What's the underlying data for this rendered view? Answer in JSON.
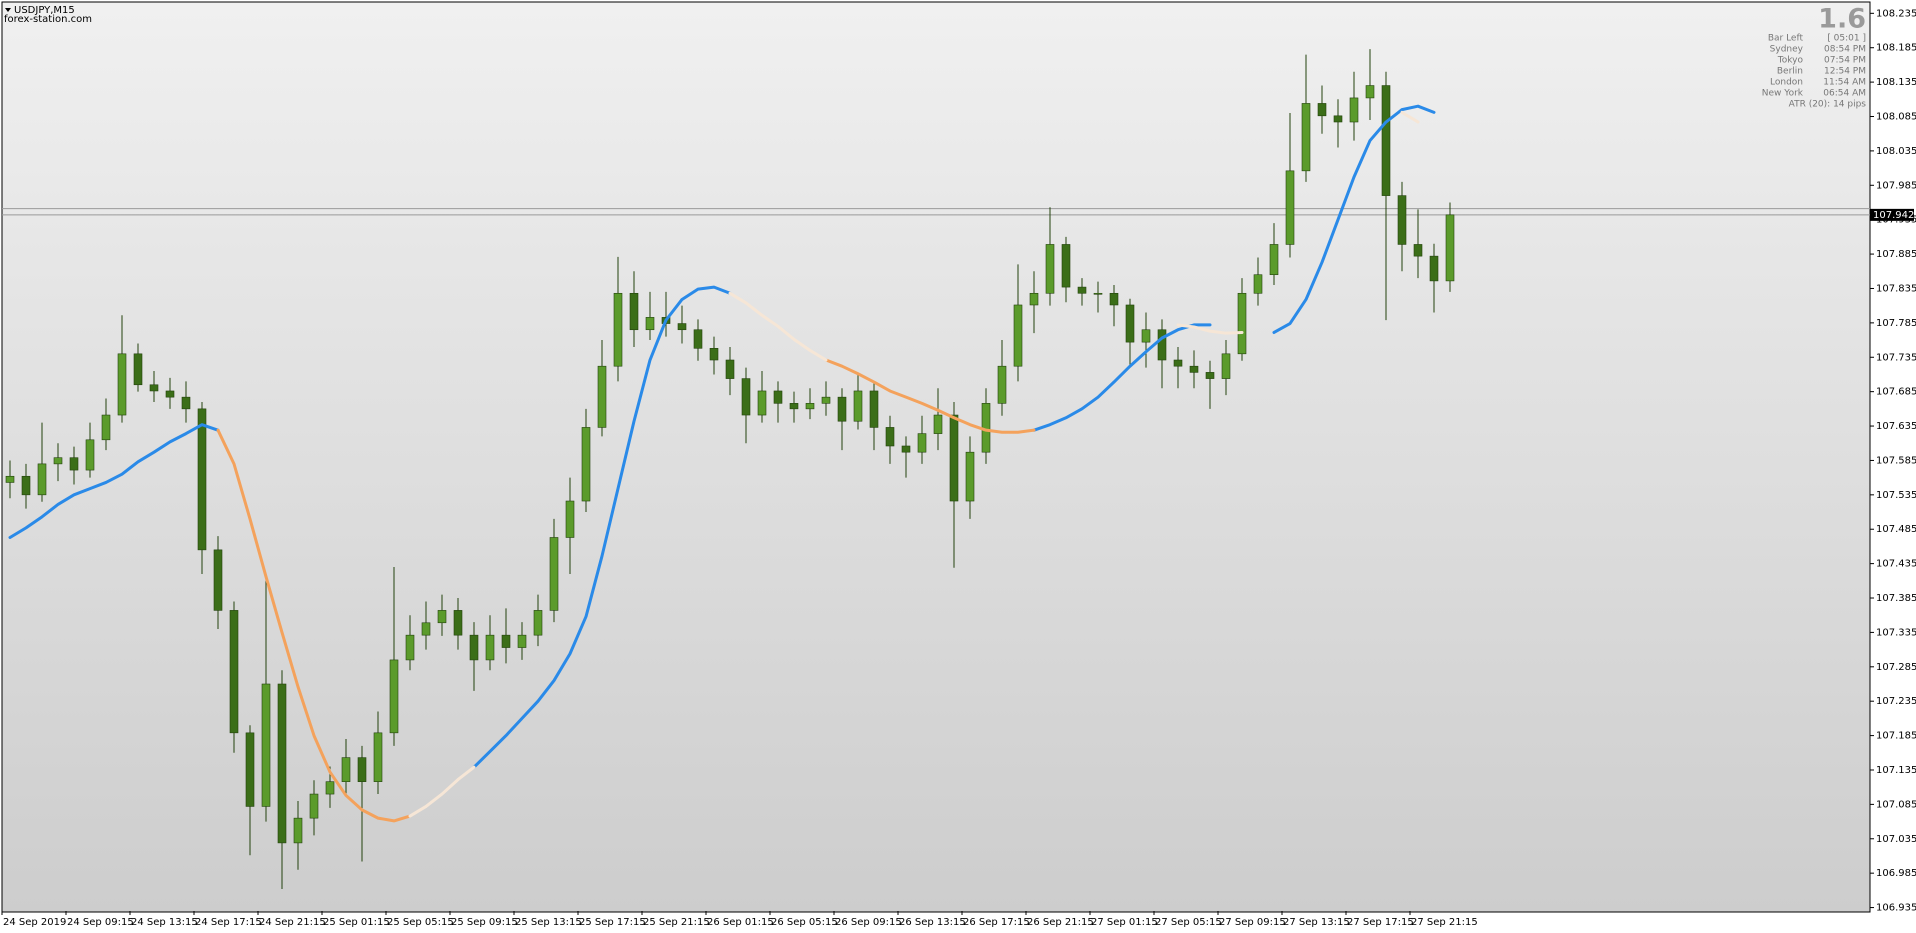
{
  "chart_data": {
    "type": "candlestick",
    "symbol": "USDJPY,M15",
    "watermark": "forex-station.com",
    "info": {
      "value": "1.6",
      "rows": [
        [
          "Bar Left",
          "[ 05:01 ]"
        ],
        [
          "Sydney",
          "08:54 PM"
        ],
        [
          "Tokyo",
          "07:54 PM"
        ],
        [
          "Berlin",
          "12:54 PM"
        ],
        [
          "London",
          "11:54 AM"
        ],
        [
          "New York",
          "06:54 AM"
        ]
      ],
      "footer": "ATR (20): 14 pips"
    },
    "categories": [
      "24 Sep 2019",
      null,
      null,
      null,
      "24 Sep 09:15",
      null,
      null,
      null,
      "24 Sep 13:15",
      null,
      null,
      null,
      "24 Sep 17:15",
      null,
      null,
      null,
      "24 Sep 21:15",
      null,
      null,
      null,
      "25 Sep 01:15",
      null,
      null,
      null,
      "25 Sep 05:15",
      null,
      null,
      null,
      "25 Sep 09:15",
      null,
      null,
      null,
      "25 Sep 13:15",
      null,
      null,
      null,
      "25 Sep 17:15",
      null,
      null,
      null,
      "25 Sep 21:15",
      null,
      null,
      null,
      "26 Sep 01:15",
      null,
      null,
      null,
      "26 Sep 05:15",
      null,
      null,
      null,
      "26 Sep 09:15",
      null,
      null,
      null,
      "26 Sep 13:15",
      null,
      null,
      null,
      "26 Sep 17:15",
      null,
      null,
      null,
      "26 Sep 21:15",
      null,
      null,
      null,
      "27 Sep 01:15",
      null,
      null,
      null,
      "27 Sep 05:15",
      null,
      null,
      null,
      "27 Sep 09:15",
      null,
      null,
      null,
      "27 Sep 13:15",
      null,
      null,
      null,
      "27 Sep 17:15",
      null,
      null,
      null,
      "27 Sep 21:15",
      null,
      null
    ],
    "open": [
      107.553,
      107.562,
      107.535,
      107.58,
      107.589,
      107.571,
      107.615,
      107.651,
      107.74,
      107.695,
      107.686,
      107.677,
      107.66,
      107.455,
      107.367,
      107.189,
      107.082,
      107.26,
      107.029,
      107.065,
      107.1,
      107.118,
      107.153,
      107.118,
      107.189,
      107.295,
      107.331,
      107.349,
      107.367,
      107.331,
      107.295,
      107.331,
      107.313,
      107.331,
      107.367,
      107.473,
      107.526,
      107.633,
      107.722,
      107.828,
      107.775,
      107.793,
      107.784,
      107.775,
      107.748,
      107.731,
      107.704,
      107.651,
      107.686,
      107.668,
      107.66,
      107.668,
      107.677,
      107.642,
      107.686,
      107.633,
      107.606,
      107.597,
      107.624,
      107.651,
      107.526,
      107.597,
      107.668,
      107.722,
      107.811,
      107.828,
      107.899,
      107.837,
      107.828,
      107.828,
      107.811,
      107.757,
      107.775,
      107.731,
      107.722,
      107.713,
      107.704,
      107.74,
      107.828,
      107.855,
      107.899,
      108.006,
      108.104,
      108.086,
      108.077,
      108.112,
      108.13,
      107.97,
      107.899,
      107.882,
      107.846
    ],
    "high": [
      107.585,
      107.58,
      107.64,
      107.61,
      107.605,
      107.64,
      107.675,
      107.796,
      107.755,
      107.715,
      107.705,
      107.7,
      107.67,
      107.475,
      107.38,
      107.2,
      107.42,
      107.28,
      107.09,
      107.12,
      107.14,
      107.18,
      107.17,
      107.22,
      107.43,
      107.36,
      107.38,
      107.39,
      107.385,
      107.35,
      107.36,
      107.37,
      107.35,
      107.39,
      107.5,
      107.56,
      107.66,
      107.76,
      107.881,
      107.86,
      107.83,
      107.83,
      107.81,
      107.79,
      107.765,
      107.75,
      107.72,
      107.715,
      107.7,
      107.685,
      107.69,
      107.7,
      107.69,
      107.71,
      107.7,
      107.65,
      107.62,
      107.65,
      107.69,
      107.67,
      107.62,
      107.69,
      107.76,
      107.87,
      107.86,
      107.953,
      107.91,
      107.85,
      107.845,
      107.84,
      107.82,
      107.8,
      107.79,
      107.75,
      107.745,
      107.73,
      107.76,
      107.85,
      107.88,
      107.93,
      108.09,
      108.175,
      108.13,
      108.11,
      108.15,
      108.183,
      108.15,
      107.99,
      107.95,
      107.9,
      107.96
    ],
    "low": [
      107.53,
      107.515,
      107.525,
      107.555,
      107.55,
      107.56,
      107.6,
      107.64,
      107.685,
      107.67,
      107.66,
      107.64,
      107.42,
      107.34,
      107.16,
      107.011,
      107.06,
      106.962,
      106.99,
      107.04,
      107.08,
      107.1,
      107.002,
      107.1,
      107.17,
      107.28,
      107.31,
      107.33,
      107.31,
      107.25,
      107.28,
      107.29,
      107.295,
      107.315,
      107.35,
      107.42,
      107.51,
      107.62,
      107.7,
      107.75,
      107.76,
      107.765,
      107.755,
      107.73,
      107.71,
      107.68,
      107.61,
      107.64,
      107.64,
      107.64,
      107.645,
      107.65,
      107.6,
      107.63,
      107.6,
      107.58,
      107.56,
      107.58,
      107.6,
      107.429,
      107.5,
      107.58,
      107.65,
      107.7,
      107.77,
      107.81,
      107.815,
      107.81,
      107.8,
      107.78,
      107.72,
      107.72,
      107.69,
      107.69,
      107.69,
      107.66,
      107.68,
      107.73,
      107.81,
      107.84,
      107.88,
      107.99,
      108.06,
      108.04,
      108.05,
      108.08,
      107.789,
      107.86,
      107.85,
      107.8,
      107.83
    ],
    "close": [
      107.562,
      107.535,
      107.58,
      107.589,
      107.571,
      107.615,
      107.651,
      107.74,
      107.695,
      107.686,
      107.677,
      107.66,
      107.455,
      107.367,
      107.189,
      107.082,
      107.26,
      107.029,
      107.065,
      107.1,
      107.118,
      107.153,
      107.118,
      107.189,
      107.295,
      107.331,
      107.349,
      107.367,
      107.331,
      107.295,
      107.331,
      107.313,
      107.331,
      107.367,
      107.473,
      107.526,
      107.633,
      107.722,
      107.828,
      107.775,
      107.793,
      107.784,
      107.775,
      107.748,
      107.731,
      107.704,
      107.651,
      107.686,
      107.668,
      107.66,
      107.668,
      107.677,
      107.642,
      107.686,
      107.633,
      107.606,
      107.597,
      107.624,
      107.651,
      107.526,
      107.597,
      107.668,
      107.722,
      107.811,
      107.828,
      107.899,
      107.837,
      107.828,
      107.828,
      107.811,
      107.757,
      107.775,
      107.731,
      107.722,
      107.713,
      107.704,
      107.74,
      107.828,
      107.855,
      107.899,
      108.006,
      108.104,
      108.086,
      108.077,
      108.112,
      108.13,
      107.97,
      107.899,
      107.882,
      107.846,
      107.942
    ],
    "up_color": "#5b9b2b",
    "down_color": "#3b6e18",
    "wick_color": "#23420d",
    "lines": [
      {
        "color": "#2a8ae8",
        "values": [
          107.473,
          107.487,
          107.503,
          107.521,
          107.535,
          107.544,
          107.553,
          107.565,
          107.583,
          107.597,
          107.612,
          107.624,
          107.637,
          107.629,
          null,
          null,
          null,
          null,
          null,
          null,
          null,
          null,
          null,
          null,
          null,
          null,
          null,
          null,
          null,
          107.139,
          107.162,
          107.185,
          107.21,
          107.235,
          107.265,
          107.304,
          107.358,
          107.446,
          107.544,
          107.642,
          107.731,
          107.789,
          107.819,
          107.834,
          107.837,
          107.828,
          null,
          null,
          null,
          null,
          null,
          null,
          null,
          null,
          null,
          null,
          null,
          null,
          null,
          null,
          null,
          null,
          null,
          null,
          107.629,
          107.637,
          107.647,
          107.66,
          107.677,
          107.699,
          107.722,
          107.743,
          107.763,
          107.775,
          107.782,
          107.782,
          null,
          null,
          null,
          107.771,
          107.784,
          107.819,
          107.873,
          107.935,
          107.997,
          108.05,
          108.077,
          108.095,
          108.1,
          108.091,
          null
        ]
      },
      {
        "color": "#f4a25c",
        "values": [
          null,
          null,
          null,
          null,
          null,
          null,
          null,
          null,
          null,
          null,
          null,
          null,
          null,
          107.629,
          107.58,
          107.5,
          107.416,
          107.335,
          107.256,
          107.185,
          107.132,
          107.098,
          107.077,
          107.065,
          107.061,
          107.068,
          null,
          null,
          null,
          null,
          null,
          null,
          null,
          null,
          null,
          null,
          null,
          null,
          null,
          null,
          null,
          null,
          null,
          null,
          null,
          null,
          null,
          null,
          null,
          null,
          null,
          107.731,
          107.722,
          107.711,
          107.699,
          107.686,
          107.677,
          107.668,
          107.658,
          107.647,
          107.637,
          107.629,
          107.626,
          107.626,
          107.629,
          null,
          null,
          null,
          null,
          null,
          null,
          null,
          null,
          null,
          null,
          null,
          null,
          null,
          null,
          null,
          null,
          null,
          null,
          null,
          null,
          null,
          null,
          null,
          null,
          null,
          null
        ]
      },
      {
        "color": "#f6e6d6",
        "values": [
          null,
          null,
          null,
          null,
          null,
          null,
          null,
          null,
          null,
          null,
          null,
          null,
          null,
          null,
          null,
          null,
          null,
          null,
          null,
          null,
          null,
          null,
          null,
          null,
          null,
          107.068,
          107.082,
          107.1,
          107.121,
          107.139,
          null,
          null,
          null,
          null,
          null,
          null,
          null,
          null,
          null,
          null,
          null,
          null,
          null,
          null,
          null,
          107.828,
          107.814,
          107.796,
          107.78,
          107.761,
          107.745,
          107.731,
          null,
          null,
          null,
          null,
          null,
          null,
          null,
          null,
          null,
          null,
          null,
          null,
          null,
          null,
          null,
          null,
          null,
          null,
          null,
          null,
          null,
          107.782,
          107.779,
          107.773,
          107.77,
          107.771,
          null,
          null,
          null,
          null,
          null,
          null,
          null,
          null,
          null,
          108.091,
          108.077
        ]
      }
    ],
    "price_lines": [
      107.942,
      107.951
    ],
    "ylim": [
      106.93,
      108.25
    ],
    "yticks": [
      108.235,
      108.185,
      108.135,
      108.085,
      108.035,
      107.985,
      107.935,
      107.885,
      107.835,
      107.785,
      107.735,
      107.685,
      107.635,
      107.585,
      107.535,
      107.485,
      107.435,
      107.385,
      107.335,
      107.285,
      107.235,
      107.185,
      107.135,
      107.085,
      107.035,
      106.985,
      106.935
    ],
    "grid": false
  }
}
